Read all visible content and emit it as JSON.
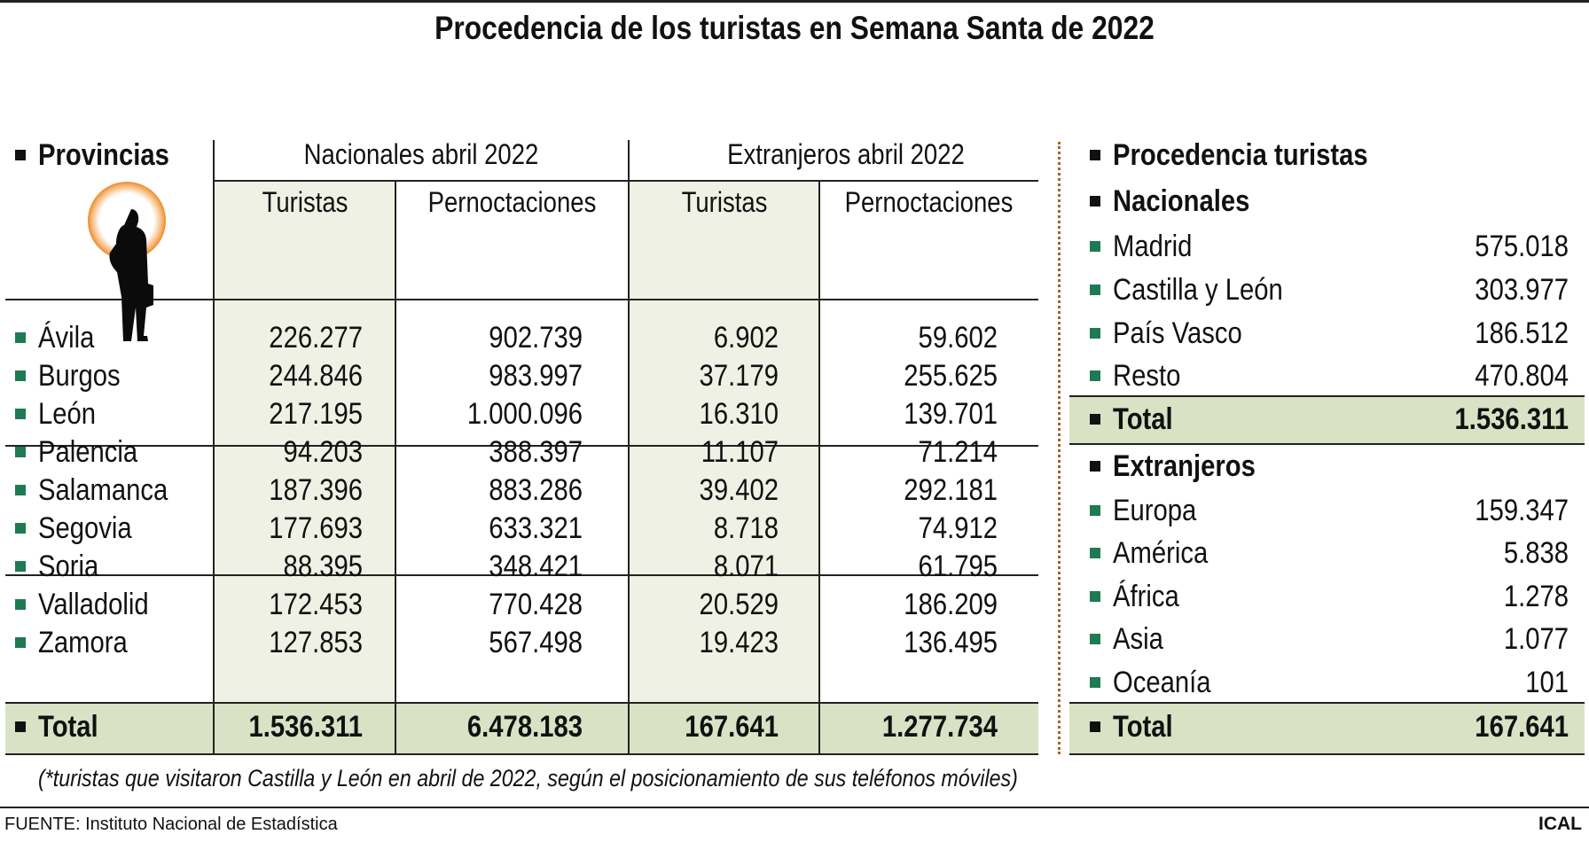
{
  "title": "Procedencia de los turistas en Semana Santa de 2022",
  "colors": {
    "bullet_green": "#1e7a52",
    "shade": "#eff1e4",
    "total_band": "#d9e2c4",
    "ring": "#f08a24",
    "divider": "#a0642a"
  },
  "left": {
    "provincias_label": "Provincias",
    "group_nacionales": "Nacionales abril 2022",
    "group_extranjeros": "Extranjeros abril 2022",
    "col_turistas": "Turistas",
    "col_pernoctaciones": "Pernoctaciones",
    "rows": [
      {
        "name": "Ávila",
        "nt": "226.277",
        "np": "902.739",
        "et": "6.902",
        "ep": "59.602"
      },
      {
        "name": "Burgos",
        "nt": "244.846",
        "np": "983.997",
        "et": "37.179",
        "ep": "255.625"
      },
      {
        "name": "León",
        "nt": "217.195",
        "np": "1.000.096",
        "et": "16.310",
        "ep": "139.701"
      },
      {
        "name": "Palencia",
        "nt": "94.203",
        "np": "388.397",
        "et": "11.107",
        "ep": "71.214"
      },
      {
        "name": "Salamanca",
        "nt": "187.396",
        "np": "883.286",
        "et": "39.402",
        "ep": "292.181"
      },
      {
        "name": "Segovia",
        "nt": "177.693",
        "np": "633.321",
        "et": "8.718",
        "ep": "74.912"
      },
      {
        "name": "Soria",
        "nt": "88.395",
        "np": "348.421",
        "et": "8.071",
        "ep": "61.795"
      },
      {
        "name": "Valladolid",
        "nt": "172.453",
        "np": "770.428",
        "et": "20.529",
        "ep": "186.209"
      },
      {
        "name": "Zamora",
        "nt": "127.853",
        "np": "567.498",
        "et": "19.423",
        "ep": "136.495"
      }
    ],
    "total": {
      "name": "Total",
      "nt": "1.536.311",
      "np": "6.478.183",
      "et": "167.641",
      "ep": "1.277.734"
    }
  },
  "right": {
    "heading": "Procedencia turistas",
    "nacionales_label": "Nacionales",
    "nacionales": [
      {
        "name": "Madrid",
        "value": "575.018"
      },
      {
        "name": "Castilla y León",
        "value": "303.977"
      },
      {
        "name": "País Vasco",
        "value": "186.512"
      },
      {
        "name": "Resto",
        "value": "470.804"
      }
    ],
    "nacionales_total": {
      "name": "Total",
      "value": "1.536.311"
    },
    "extranjeros_label": "Extranjeros",
    "extranjeros": [
      {
        "name": "Europa",
        "value": "159.347"
      },
      {
        "name": "América",
        "value": "5.838"
      },
      {
        "name": "África",
        "value": "1.278"
      },
      {
        "name": "Asia",
        "value": "1.077"
      },
      {
        "name": "Oceanía",
        "value": "101"
      }
    ],
    "extranjeros_total": {
      "name": "Total",
      "value": "167.641"
    }
  },
  "footnote": "(*turistas que visitaron Castilla y León en abril de 2022, según el posicionamiento de sus teléfonos móviles)",
  "source_label": "FUENTE:",
  "source": "Instituto Nacional de Estadística",
  "brand": "ICAL"
}
